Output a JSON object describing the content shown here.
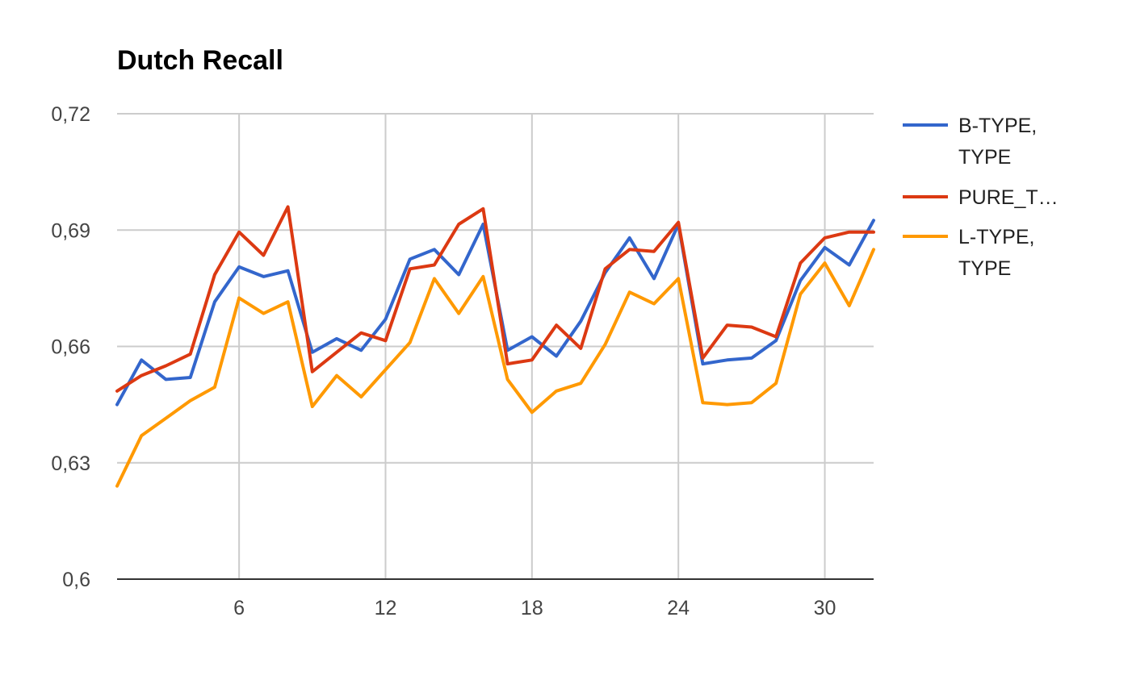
{
  "chart_data": {
    "type": "line",
    "title": "Dutch Recall",
    "xlabel": "",
    "ylabel": "",
    "xlim": [
      1,
      32
    ],
    "ylim": [
      0.6,
      0.72
    ],
    "x_ticks": [
      6,
      12,
      18,
      24,
      30
    ],
    "x_tick_labels": [
      "6",
      "12",
      "18",
      "24",
      "30"
    ],
    "y_ticks": [
      0.6,
      0.63,
      0.66,
      0.69,
      0.72
    ],
    "y_tick_labels": [
      "0,6",
      "0,63",
      "0,66",
      "0,69",
      "0,72"
    ],
    "grid": true,
    "legend_position": "right",
    "x": [
      1,
      2,
      3,
      4,
      5,
      6,
      7,
      8,
      9,
      10,
      11,
      12,
      13,
      14,
      15,
      16,
      17,
      18,
      19,
      20,
      21,
      22,
      23,
      24,
      25,
      26,
      27,
      28,
      29,
      30,
      31,
      32
    ],
    "series": [
      {
        "name": "B-TYPE, TYPE",
        "legend_lines": [
          "B-TYPE,",
          "TYPE"
        ],
        "color": "#3366cc",
        "values": [
          0.645,
          0.6565,
          0.6515,
          0.652,
          0.6715,
          0.6805,
          0.678,
          0.6795,
          0.6585,
          0.662,
          0.659,
          0.667,
          0.6825,
          0.685,
          0.6785,
          0.6915,
          0.659,
          0.6625,
          0.6575,
          0.6665,
          0.679,
          0.688,
          0.6775,
          0.6915,
          0.6555,
          0.6565,
          0.657,
          0.6615,
          0.677,
          0.6855,
          0.681,
          0.6925
        ]
      },
      {
        "name": "PURE_T…",
        "legend_lines": [
          "PURE_T…"
        ],
        "color": "#dc3912",
        "values": [
          0.6485,
          0.6525,
          0.655,
          0.658,
          0.6785,
          0.6895,
          0.6835,
          0.696,
          0.6535,
          0.6585,
          0.6635,
          0.6615,
          0.68,
          0.681,
          0.6915,
          0.6955,
          0.6555,
          0.6565,
          0.6655,
          0.6595,
          0.68,
          0.685,
          0.6845,
          0.692,
          0.657,
          0.6655,
          0.665,
          0.6625,
          0.6815,
          0.688,
          0.6895,
          0.6895
        ]
      },
      {
        "name": "L-TYPE, TYPE",
        "legend_lines": [
          "L-TYPE,",
          "TYPE"
        ],
        "color": "#ff9900",
        "values": [
          0.624,
          0.637,
          0.6415,
          0.646,
          0.6495,
          0.6725,
          0.6685,
          0.6715,
          0.6445,
          0.6525,
          0.647,
          0.654,
          0.661,
          0.6775,
          0.6685,
          0.678,
          0.6515,
          0.643,
          0.6485,
          0.6505,
          0.6605,
          0.674,
          0.671,
          0.6775,
          0.6455,
          0.645,
          0.6455,
          0.6505,
          0.6735,
          0.6815,
          0.6705,
          0.685
        ]
      }
    ]
  }
}
